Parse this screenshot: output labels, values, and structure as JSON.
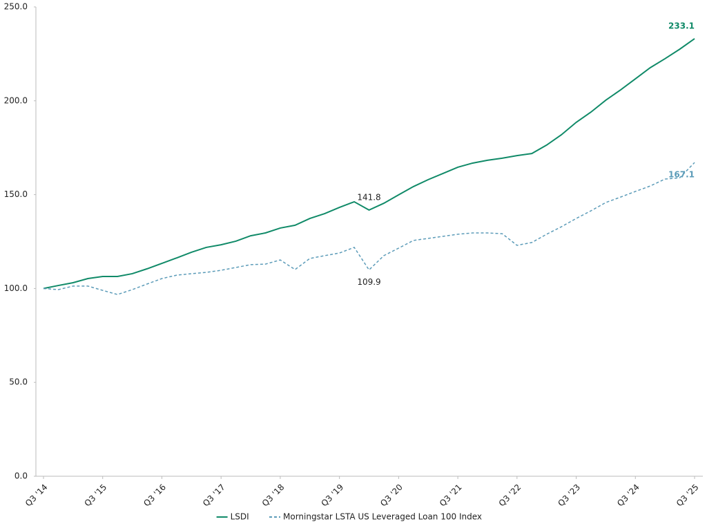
{
  "chart_data": {
    "type": "line",
    "categories": [
      "Q3 '14",
      null,
      null,
      null,
      "Q3 '15",
      null,
      null,
      null,
      "Q3 '16",
      null,
      null,
      null,
      "Q3 '17",
      null,
      null,
      null,
      "Q3 '18",
      null,
      null,
      null,
      "Q3 '19",
      null,
      null,
      null,
      "Q3 '20",
      null,
      null,
      null,
      "Q3 '21",
      null,
      null,
      null,
      "Q3 '22",
      null,
      null,
      null,
      "Q3 '23",
      null,
      null,
      null,
      "Q3 '24",
      null,
      null,
      null,
      "Q3 '25"
    ],
    "series": [
      {
        "name": "LSDI",
        "color": "#108a68",
        "style": "solid",
        "label_indices": [
          22,
          44
        ],
        "label_bold": [
          false,
          true
        ],
        "values": [
          100.0,
          101.6,
          103.1,
          105.3,
          106.4,
          106.4,
          107.9,
          110.5,
          113.4,
          116.3,
          119.3,
          121.9,
          123.3,
          125.2,
          128.1,
          129.6,
          132.2,
          133.7,
          137.3,
          139.9,
          143.2,
          146.2,
          141.8,
          145.4,
          149.9,
          154.3,
          158.0,
          161.3,
          164.6,
          166.8,
          168.3,
          169.4,
          170.8,
          171.9,
          176.4,
          181.9,
          188.5,
          194.0,
          200.3,
          205.8,
          211.7,
          217.6,
          222.4,
          227.5,
          233.1
        ]
      },
      {
        "name": "Morningstar LSTA US Leveraged Loan 100 Index",
        "color": "#5b9bb8",
        "style": "dashed",
        "label_indices": [
          22,
          44
        ],
        "label_bold": [
          false,
          true
        ],
        "values": [
          100.0,
          99.4,
          101.3,
          101.3,
          99.0,
          96.8,
          99.4,
          102.4,
          105.3,
          107.1,
          107.9,
          108.6,
          109.7,
          111.2,
          112.7,
          113.0,
          115.2,
          110.1,
          116.0,
          117.5,
          118.9,
          121.9,
          109.9,
          117.5,
          121.5,
          125.6,
          126.7,
          127.8,
          128.9,
          129.6,
          129.6,
          129.2,
          123.0,
          124.5,
          128.9,
          132.9,
          137.3,
          141.4,
          145.8,
          148.7,
          151.7,
          154.6,
          158.3,
          159.0,
          167.1
        ]
      }
    ],
    "ylim": [
      0,
      250
    ],
    "yticks": [
      {
        "value": 0,
        "label": "0.0"
      },
      {
        "value": 50,
        "label": "50.0"
      },
      {
        "value": 100,
        "label": "100.0"
      },
      {
        "value": 150,
        "label": "150.0"
      },
      {
        "value": 200,
        "label": "200.0"
      },
      {
        "value": 250,
        "label": "250.0"
      }
    ],
    "grid": false,
    "legend": "bottom"
  }
}
